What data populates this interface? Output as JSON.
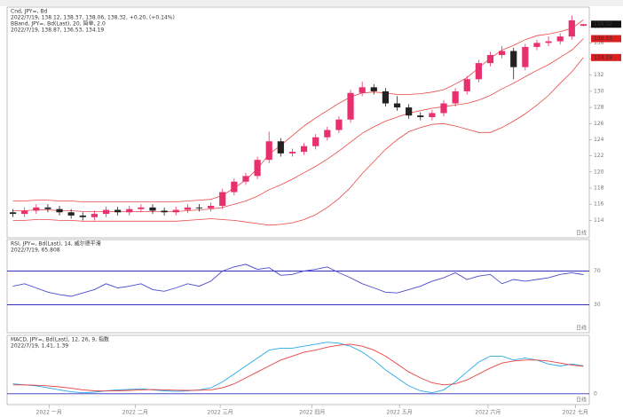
{
  "chart_data": [
    {
      "type": "candlestick",
      "title": "Cnd, JPY=, Bd",
      "subtitle": "2022/7/19, 138.12, 138.37, 138.06, 138.32, +0.20, (+0.14%)",
      "up_color": "#e8306e",
      "down_color": "#222222",
      "values": [
        [
          115.0,
          115.4,
          114.4,
          114.8
        ],
        [
          114.8,
          115.6,
          114.4,
          115.2
        ],
        [
          115.2,
          116.0,
          114.8,
          115.6
        ],
        [
          115.6,
          116.0,
          115.0,
          115.4
        ],
        [
          115.4,
          115.8,
          114.6,
          115.0
        ],
        [
          115.0,
          115.4,
          114.2,
          114.6
        ],
        [
          114.6,
          115.0,
          114.0,
          114.4
        ],
        [
          114.4,
          115.2,
          114.0,
          114.8
        ],
        [
          114.8,
          115.7,
          114.4,
          115.3
        ],
        [
          115.3,
          115.7,
          114.6,
          115.0
        ],
        [
          115.0,
          115.8,
          114.6,
          115.4
        ],
        [
          115.4,
          116.0,
          115.0,
          115.6
        ],
        [
          115.6,
          116.0,
          114.8,
          115.2
        ],
        [
          115.2,
          115.6,
          114.6,
          115.0
        ],
        [
          115.0,
          115.7,
          114.6,
          115.3
        ],
        [
          115.3,
          116.0,
          114.9,
          115.6
        ],
        [
          115.6,
          116.0,
          115.1,
          115.5
        ],
        [
          115.5,
          116.2,
          115.1,
          115.8
        ],
        [
          115.8,
          117.9,
          115.4,
          117.5
        ],
        [
          117.5,
          119.2,
          117.1,
          118.8
        ],
        [
          118.8,
          119.9,
          118.4,
          119.5
        ],
        [
          119.5,
          121.9,
          119.1,
          121.5
        ],
        [
          121.5,
          125.0,
          121.1,
          123.8
        ],
        [
          123.8,
          124.2,
          121.9,
          122.3
        ],
        [
          122.3,
          122.9,
          121.9,
          122.5
        ],
        [
          122.5,
          123.6,
          122.1,
          123.2
        ],
        [
          123.2,
          124.7,
          122.8,
          124.3
        ],
        [
          124.3,
          125.6,
          123.9,
          125.2
        ],
        [
          125.2,
          126.9,
          124.8,
          126.5
        ],
        [
          126.5,
          130.2,
          126.1,
          129.8
        ],
        [
          129.8,
          131.2,
          129.4,
          130.5
        ],
        [
          130.5,
          130.9,
          129.6,
          130.0
        ],
        [
          130.0,
          130.4,
          128.1,
          128.5
        ],
        [
          128.5,
          129.4,
          127.6,
          128.0
        ],
        [
          128.0,
          128.4,
          126.6,
          127.0
        ],
        [
          127.0,
          127.4,
          126.4,
          126.8
        ],
        [
          126.8,
          127.7,
          126.4,
          127.3
        ],
        [
          127.3,
          128.9,
          126.9,
          128.5
        ],
        [
          128.5,
          130.4,
          128.1,
          130.0
        ],
        [
          130.0,
          131.9,
          129.6,
          131.5
        ],
        [
          131.5,
          133.9,
          131.1,
          133.5
        ],
        [
          133.5,
          134.9,
          133.1,
          134.5
        ],
        [
          134.5,
          135.6,
          134.1,
          135.0
        ],
        [
          135.0,
          135.4,
          131.5,
          133.0
        ],
        [
          133.0,
          135.9,
          132.6,
          135.5
        ],
        [
          135.5,
          136.4,
          135.1,
          136.0
        ],
        [
          136.0,
          136.8,
          135.6,
          136.2
        ],
        [
          136.2,
          137.2,
          135.8,
          136.8
        ],
        [
          136.8,
          139.4,
          136.4,
          138.8
        ],
        [
          138.12,
          138.37,
          138.06,
          138.32
        ]
      ],
      "bands": {
        "name": "BBand, JPY=, Bd(Last), 20, 简单, 2.0",
        "subtitle": "2022/7/19, 138.87, 136.53, 134.19",
        "color": "#e84848",
        "upper": [
          116.4,
          116.4,
          116.5,
          116.5,
          116.4,
          116.4,
          116.3,
          116.3,
          116.3,
          116.3,
          116.3,
          116.3,
          116.3,
          116.3,
          116.3,
          116.4,
          116.5,
          116.6,
          117.1,
          118.0,
          119.0,
          120.4,
          122.2,
          123.3,
          124.5,
          125.7,
          126.7,
          127.6,
          128.5,
          129.3,
          129.8,
          129.9,
          129.8,
          129.6,
          129.6,
          129.7,
          129.9,
          130.2,
          130.9,
          131.7,
          132.9,
          134.1,
          135.1,
          135.7,
          136.4,
          136.9,
          137.1,
          137.4,
          137.8,
          138.87
        ],
        "middle": [
          115.2,
          115.2,
          115.3,
          115.3,
          115.2,
          115.2,
          115.1,
          115.1,
          115.1,
          115.1,
          115.1,
          115.1,
          115.1,
          115.1,
          115.1,
          115.2,
          115.3,
          115.4,
          115.6,
          116.0,
          116.4,
          117.0,
          117.8,
          118.4,
          119.1,
          119.9,
          120.7,
          121.6,
          122.6,
          123.7,
          124.8,
          125.6,
          126.3,
          126.8,
          127.3,
          127.6,
          127.9,
          128.1,
          128.3,
          128.5,
          128.9,
          129.5,
          130.3,
          131.0,
          131.8,
          132.6,
          133.3,
          134.2,
          135.1,
          136.53
        ],
        "lower": [
          114.0,
          114.0,
          114.1,
          114.1,
          114.0,
          114.0,
          113.9,
          113.9,
          113.9,
          113.9,
          113.9,
          113.9,
          113.9,
          113.9,
          113.9,
          114.0,
          114.1,
          114.2,
          114.1,
          114.0,
          113.8,
          113.6,
          113.4,
          113.5,
          113.7,
          114.1,
          114.7,
          115.6,
          116.7,
          118.1,
          119.8,
          121.3,
          122.8,
          124.0,
          125.0,
          125.5,
          125.9,
          126.0,
          125.7,
          125.3,
          124.9,
          124.9,
          125.5,
          126.3,
          127.2,
          128.3,
          129.5,
          131.0,
          132.4,
          134.19
        ]
      },
      "xlim": [
        0,
        50
      ],
      "xticks": [
        {
          "value": 3.6,
          "label": "2022 一月"
        },
        {
          "value": 11,
          "label": "2022 二月"
        },
        {
          "value": 18.3,
          "label": "2022 三月"
        },
        {
          "value": 26.2,
          "label": "2022 四月"
        },
        {
          "value": 33.7,
          "label": "2022 五月"
        },
        {
          "value": 41.3,
          "label": "2022 六月"
        },
        {
          "value": 48.8,
          "label": "2022 七月"
        }
      ],
      "ylim": [
        112.5,
        140
      ],
      "yticks": [
        114,
        116,
        118,
        120,
        122,
        124,
        126,
        128,
        130,
        132,
        134,
        136,
        138
      ],
      "tag": "日线"
    },
    {
      "type": "line",
      "title": "RSI, JPY=, Bd(Last), 14, 威尔德平滑",
      "subtitle": "2022/7/19, 65.808",
      "series": [
        {
          "color": "#4a4acf",
          "values": [
            52,
            55,
            50,
            45,
            42,
            40,
            44,
            48,
            55,
            50,
            52,
            55,
            48,
            46,
            50,
            55,
            52,
            58,
            70,
            75,
            78,
            72,
            74,
            65,
            66,
            70,
            72,
            75,
            68,
            62,
            55,
            50,
            45,
            44,
            48,
            52,
            58,
            62,
            68,
            60,
            64,
            66,
            55,
            60,
            58,
            60,
            62,
            66,
            68,
            65.808
          ]
        }
      ],
      "xlim": [
        0,
        50
      ],
      "ylim": [
        0,
        100
      ],
      "yticks": [
        30,
        70
      ],
      "level_color": "#3030c0",
      "tag": "日线"
    },
    {
      "type": "line",
      "title": "MACD, JPY=, Bd(Last), 12, 26, 9, 指数",
      "subtitle": "2022/7/19, 1.41, 1.39",
      "series": [
        {
          "color": "#2aa8e8",
          "values": [
            0.5,
            0.45,
            0.4,
            0.3,
            0.2,
            0.1,
            0.05,
            0.08,
            0.15,
            0.2,
            0.22,
            0.25,
            0.2,
            0.15,
            0.12,
            0.15,
            0.2,
            0.3,
            0.6,
            1.0,
            1.4,
            1.8,
            2.2,
            2.3,
            2.3,
            2.4,
            2.5,
            2.6,
            2.55,
            2.4,
            2.1,
            1.7,
            1.2,
            0.8,
            0.4,
            0.15,
            0.05,
            0.2,
            0.6,
            1.1,
            1.6,
            1.9,
            1.9,
            1.7,
            1.8,
            1.7,
            1.5,
            1.4,
            1.5,
            1.41
          ]
        },
        {
          "color": "#e84040",
          "values": [
            0.45,
            0.45,
            0.43,
            0.4,
            0.35,
            0.28,
            0.2,
            0.15,
            0.14,
            0.15,
            0.17,
            0.2,
            0.21,
            0.2,
            0.18,
            0.17,
            0.18,
            0.2,
            0.3,
            0.5,
            0.8,
            1.1,
            1.4,
            1.7,
            1.9,
            2.1,
            2.2,
            2.35,
            2.45,
            2.5,
            2.4,
            2.2,
            1.9,
            1.5,
            1.1,
            0.8,
            0.55,
            0.45,
            0.5,
            0.7,
            1.0,
            1.3,
            1.55,
            1.65,
            1.7,
            1.7,
            1.65,
            1.55,
            1.45,
            1.39
          ]
        }
      ],
      "xlim": [
        0,
        50
      ],
      "ylim": [
        -0.5,
        2.9
      ],
      "yticks": [
        0
      ],
      "level_color": "#3030c0",
      "tag": "日线"
    }
  ]
}
